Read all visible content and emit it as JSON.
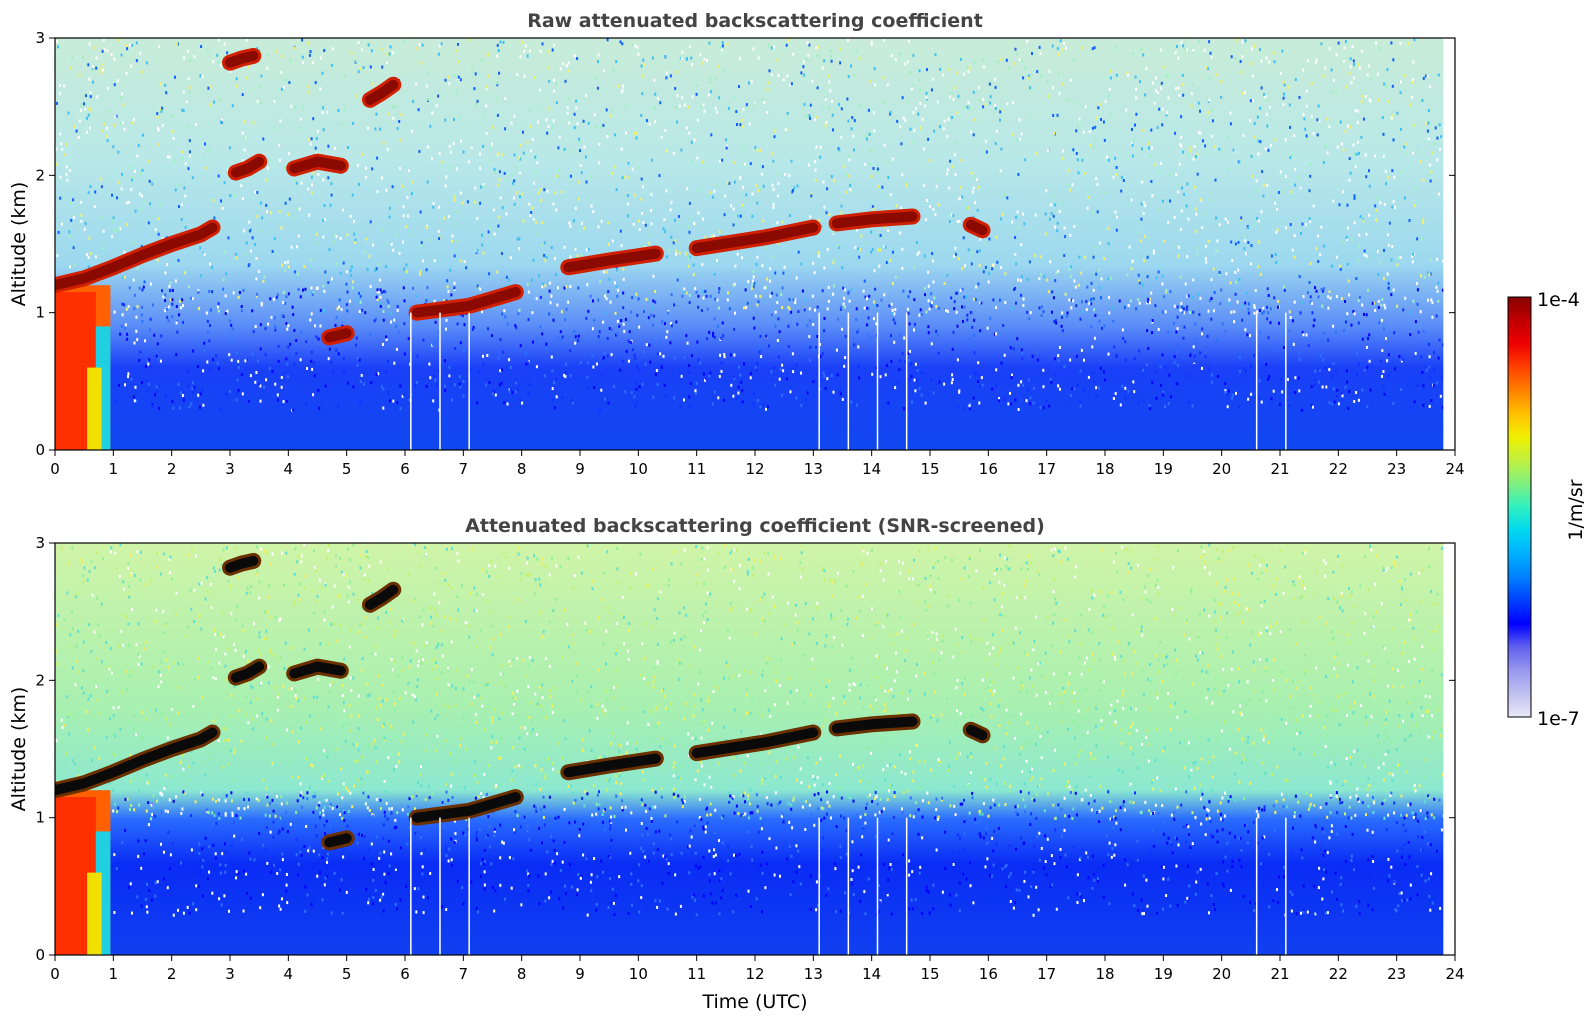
{
  "chart_data": [
    {
      "type": "heatmap",
      "title": "Raw attenuated backscattering coefficient",
      "xlabel": "",
      "ylabel": "Altitude (km)",
      "xlim": [
        0,
        24
      ],
      "ylim": [
        0,
        3
      ],
      "x_ticks": [
        "0",
        "1",
        "2",
        "3",
        "4",
        "5",
        "6",
        "7",
        "8",
        "9",
        "10",
        "11",
        "12",
        "13",
        "14",
        "15",
        "16",
        "17",
        "18",
        "19",
        "20",
        "21",
        "22",
        "23",
        "24"
      ],
      "y_ticks": [
        "0",
        "1",
        "2",
        "3"
      ],
      "data_x_end": 23.8,
      "colorscale": "jet",
      "log_scale": true,
      "value_range": [
        1e-07,
        0.0001
      ],
      "screened": false,
      "cloud_layers": [
        {
          "x": [
            0,
            0.5,
            1.0,
            1.5,
            2.0,
            2.5,
            2.7
          ],
          "y": [
            1.2,
            1.25,
            1.33,
            1.42,
            1.5,
            1.57,
            1.62
          ]
        },
        {
          "x": [
            3.0,
            3.2,
            3.4
          ],
          "y": [
            2.82,
            2.85,
            2.87
          ]
        },
        {
          "x": [
            3.1,
            3.3,
            3.5
          ],
          "y": [
            2.02,
            2.05,
            2.1
          ]
        },
        {
          "x": [
            4.1,
            4.5,
            4.9
          ],
          "y": [
            2.05,
            2.1,
            2.07
          ]
        },
        {
          "x": [
            5.4,
            5.6,
            5.8
          ],
          "y": [
            2.55,
            2.6,
            2.66
          ]
        },
        {
          "x": [
            4.7,
            5.0
          ],
          "y": [
            0.82,
            0.85
          ]
        },
        {
          "x": [
            6.2,
            7.1,
            7.9
          ],
          "y": [
            1.0,
            1.05,
            1.15
          ]
        },
        {
          "x": [
            8.8,
            9.5,
            10.3
          ],
          "y": [
            1.33,
            1.38,
            1.43
          ]
        },
        {
          "x": [
            11.0,
            12.2,
            13.0
          ],
          "y": [
            1.47,
            1.55,
            1.62
          ]
        },
        {
          "x": [
            13.4,
            14.0,
            14.7
          ],
          "y": [
            1.65,
            1.68,
            1.7
          ]
        },
        {
          "x": [
            15.7,
            15.9
          ],
          "y": [
            1.64,
            1.6
          ]
        }
      ],
      "data_gaps_utc": [
        6.1,
        6.6,
        7.1,
        13.1,
        13.6,
        14.1,
        14.6,
        20.6,
        21.1
      ]
    },
    {
      "type": "heatmap",
      "title": "Attenuated backscattering coefficient (SNR-screened)",
      "xlabel": "Time (UTC)",
      "ylabel": "Altitude (km)",
      "xlim": [
        0,
        24
      ],
      "ylim": [
        0,
        3
      ],
      "x_ticks": [
        "0",
        "1",
        "2",
        "3",
        "4",
        "5",
        "6",
        "7",
        "8",
        "9",
        "10",
        "11",
        "12",
        "13",
        "14",
        "15",
        "16",
        "17",
        "18",
        "19",
        "20",
        "21",
        "22",
        "23",
        "24"
      ],
      "y_ticks": [
        "0",
        "1",
        "2",
        "3"
      ],
      "data_x_end": 23.8,
      "colorscale": "jet",
      "log_scale": true,
      "value_range": [
        1e-07,
        0.0001
      ],
      "screened": true,
      "cloud_layers": [
        {
          "x": [
            0,
            0.5,
            1.0,
            1.5,
            2.0,
            2.5,
            2.7
          ],
          "y": [
            1.2,
            1.25,
            1.33,
            1.42,
            1.5,
            1.57,
            1.62
          ]
        },
        {
          "x": [
            3.0,
            3.2,
            3.4
          ],
          "y": [
            2.82,
            2.85,
            2.87
          ]
        },
        {
          "x": [
            3.1,
            3.3,
            3.5
          ],
          "y": [
            2.02,
            2.05,
            2.1
          ]
        },
        {
          "x": [
            4.1,
            4.5,
            4.9
          ],
          "y": [
            2.05,
            2.1,
            2.07
          ]
        },
        {
          "x": [
            5.4,
            5.6,
            5.8
          ],
          "y": [
            2.55,
            2.6,
            2.66
          ]
        },
        {
          "x": [
            4.7,
            5.0
          ],
          "y": [
            0.82,
            0.85
          ]
        },
        {
          "x": [
            6.2,
            7.1,
            7.9
          ],
          "y": [
            1.0,
            1.05,
            1.15
          ]
        },
        {
          "x": [
            8.8,
            9.5,
            10.3
          ],
          "y": [
            1.33,
            1.38,
            1.43
          ]
        },
        {
          "x": [
            11.0,
            12.2,
            13.0
          ],
          "y": [
            1.47,
            1.55,
            1.62
          ]
        },
        {
          "x": [
            13.4,
            14.0,
            14.7
          ],
          "y": [
            1.65,
            1.68,
            1.7
          ]
        },
        {
          "x": [
            15.7,
            15.9
          ],
          "y": [
            1.64,
            1.6
          ]
        }
      ],
      "data_gaps_utc": [
        6.1,
        6.6,
        7.1,
        13.1,
        13.6,
        14.1,
        14.6,
        20.6,
        21.1
      ]
    }
  ],
  "colorbar": {
    "max_label": "1e-4",
    "min_label": "1e-7",
    "unit_label": "1/m/sr",
    "colors": [
      "#e8e8f8",
      "#c0c0f0",
      "#9898f0",
      "#6060f0",
      "#0000ff",
      "#0040ff",
      "#0080ff",
      "#00b0ff",
      "#00d8f0",
      "#30f0c0",
      "#80f080",
      "#c0f040",
      "#f0f000",
      "#ffc000",
      "#ff8000",
      "#ff4000",
      "#f00000",
      "#c00000",
      "#880000"
    ]
  }
}
